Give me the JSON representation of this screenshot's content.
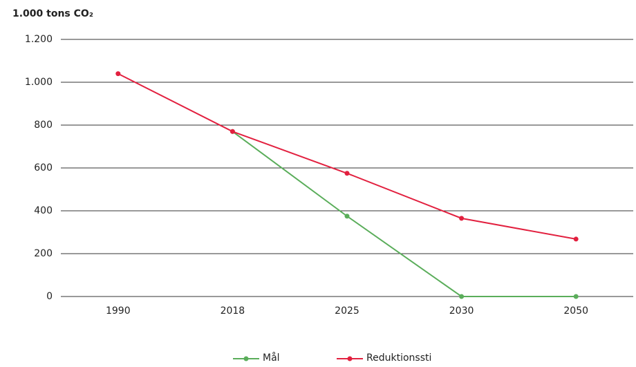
{
  "chart_data": {
    "type": "line",
    "title": "1.000 tons CO₂",
    "categories": [
      "1990",
      "2018",
      "2025",
      "2030",
      "2050"
    ],
    "series": [
      {
        "name": "Mål",
        "color": "#5aad5a",
        "values": [
          null,
          770,
          375,
          0,
          0
        ]
      },
      {
        "name": "Reduktionssti",
        "color": "#e2203f",
        "values": [
          1040,
          770,
          575,
          365,
          268
        ]
      }
    ],
    "ylim": [
      0,
      1200
    ],
    "yticks": [
      0,
      200,
      400,
      600,
      800,
      {
        "value": 1000,
        "label": "1.000"
      },
      {
        "value": 1200,
        "label": "1.200"
      }
    ],
    "grid": true,
    "legend": "bottom"
  }
}
